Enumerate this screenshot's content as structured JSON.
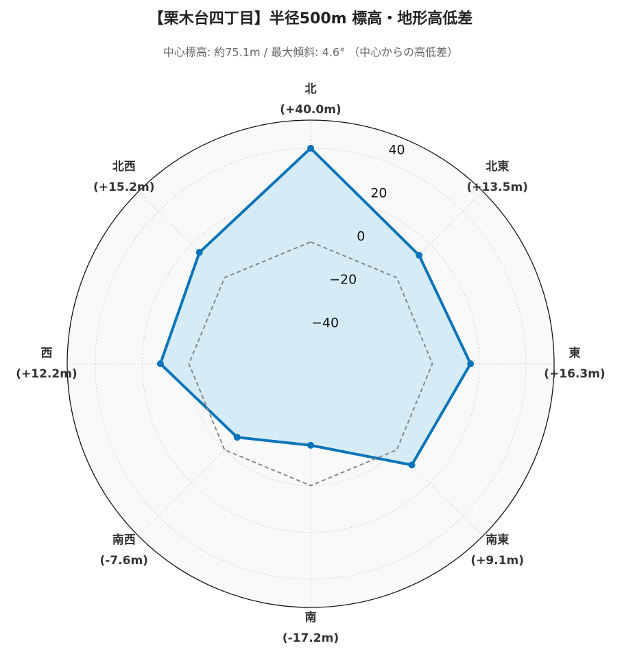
{
  "chart_data": {
    "type": "radar",
    "title": "【栗木台四丁目】半径500m 標高・地形高低差",
    "subtitle": "中心標高: 約75.1m / 最大傾斜: 4.6° （中心からの高低差）",
    "categories": [
      "北",
      "北東",
      "東",
      "南東",
      "南",
      "南西",
      "西",
      "北西"
    ],
    "series": [
      {
        "color": "#0a74b9",
        "fill": "#cfeaf7",
        "values": [
          40.0,
          13.5,
          16.3,
          9.1,
          -17.2,
          -7.6,
          12.2,
          15.2
        ],
        "value_labels": [
          "(+40.0m)",
          "(+13.5m)",
          "(+16.3m)",
          "(+9.1m)",
          "(-17.2m)",
          "(-7.6m)",
          "(+12.2m)",
          "(+15.2m)"
        ]
      },
      {
        "color": "#888888",
        "dashed": true,
        "values": [
          0,
          0,
          0,
          0,
          0,
          0,
          0,
          0
        ]
      }
    ],
    "rlim": [
      -52,
      52
    ],
    "rticks": [
      {
        "value": -40,
        "label": "−40"
      },
      {
        "value": -20,
        "label": "−20"
      },
      0,
      20,
      40
    ],
    "grid": true
  }
}
